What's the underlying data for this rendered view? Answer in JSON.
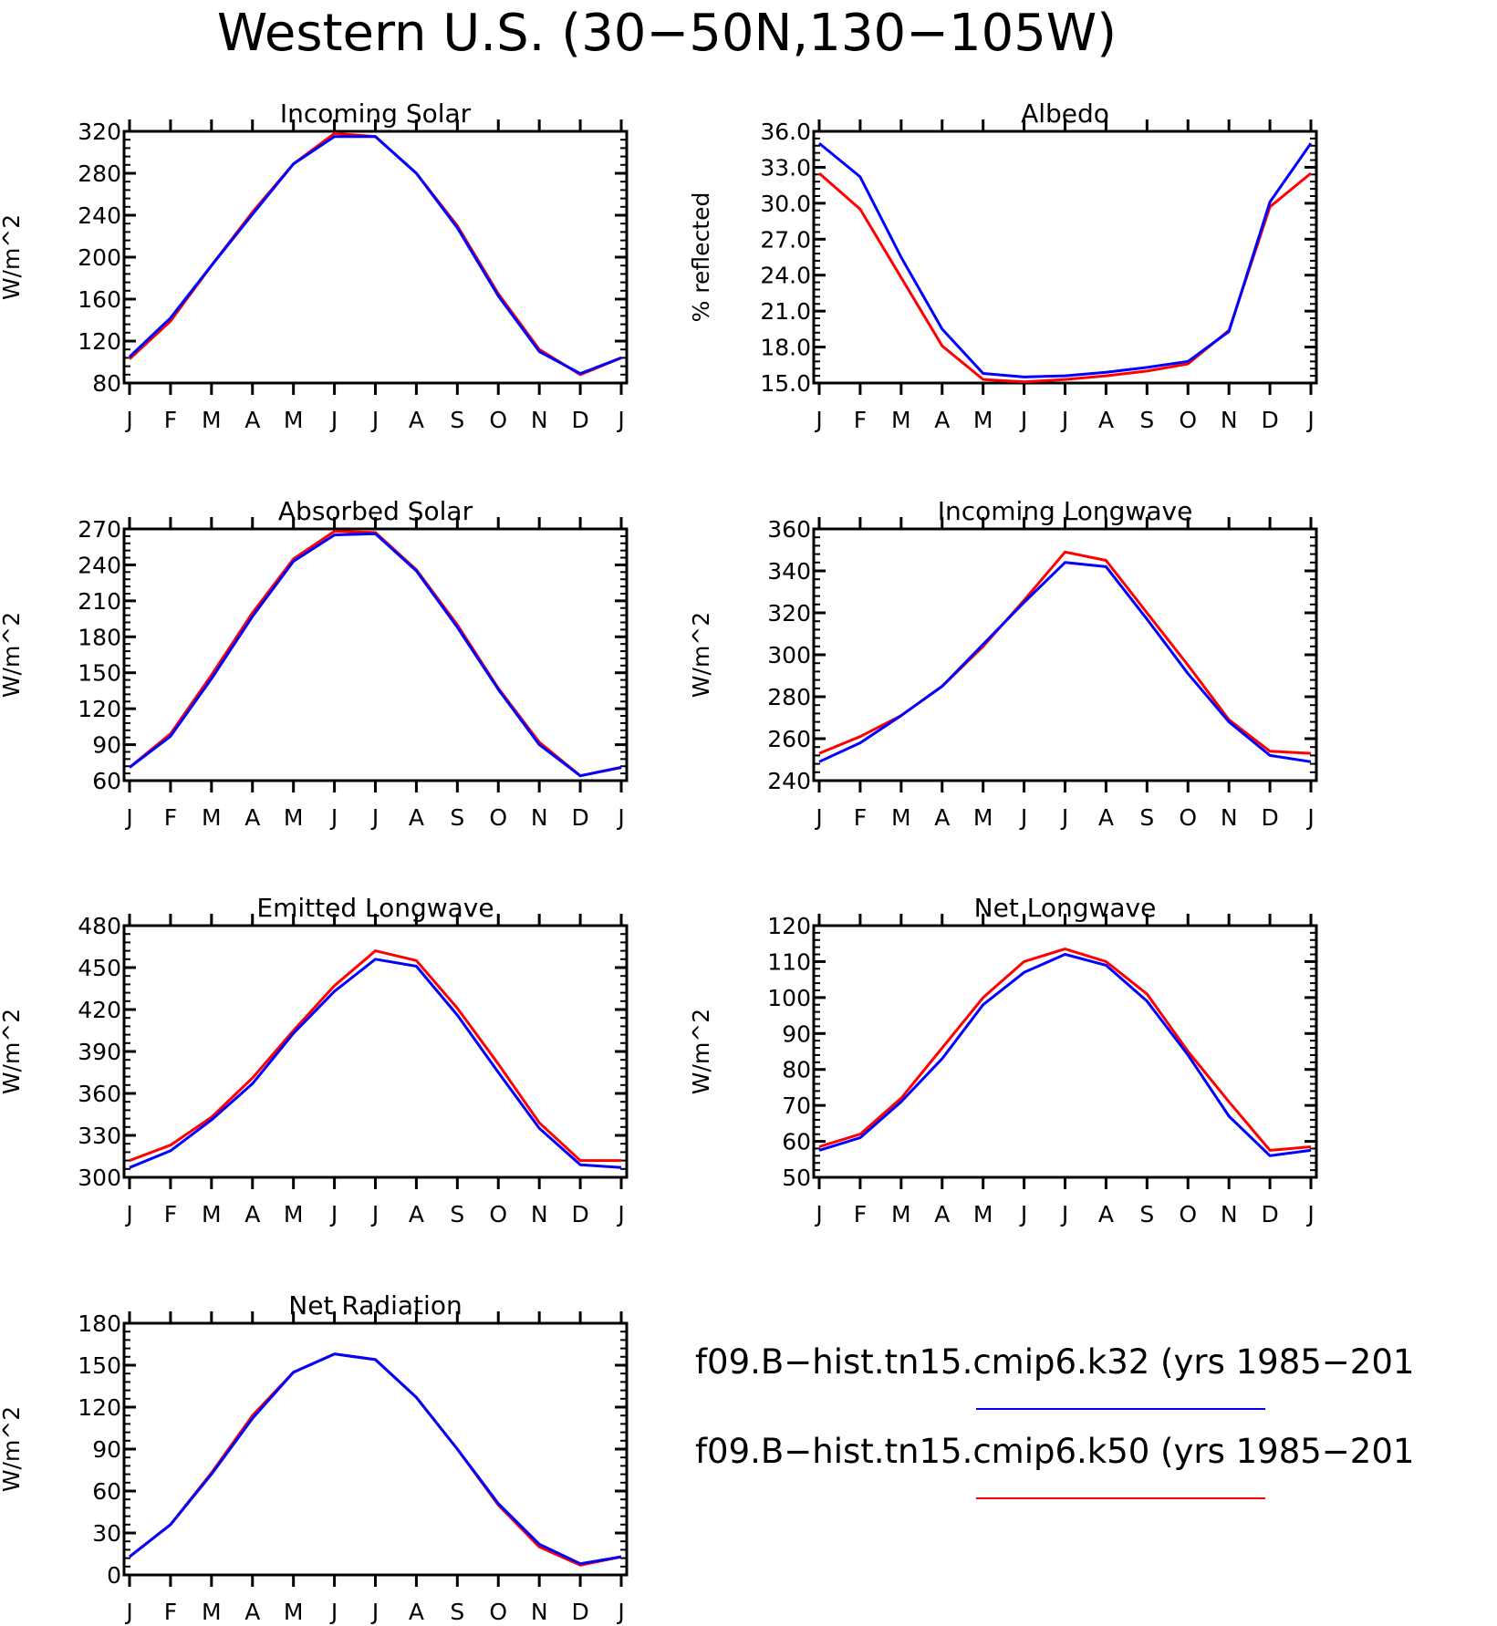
{
  "title": "Western U.S. (30−50N,130−105W)",
  "months": [
    "J",
    "F",
    "M",
    "A",
    "M",
    "J",
    "J",
    "A",
    "S",
    "O",
    "N",
    "D",
    "J"
  ],
  "colors": {
    "k32": "#0000ff",
    "k50": "#ff0000",
    "axis": "#000000"
  },
  "legend": [
    {
      "label": "f09.B−hist.tn15.cmip6.k32 (yrs 1985−201",
      "color": "#0000ff"
    },
    {
      "label": "f09.B−hist.tn15.cmip6.k50 (yrs 1985−201",
      "color": "#ff0000"
    }
  ],
  "chart_data": [
    {
      "type": "line",
      "title": "Incoming Solar",
      "ylabel": "W/m^2",
      "ylim": [
        80,
        320
      ],
      "yticks": [
        "80",
        "120",
        "160",
        "200",
        "240",
        "280",
        "320"
      ],
      "series": [
        {
          "key": "k32",
          "values": [
            105,
            142,
            192,
            241,
            289,
            315,
            315,
            280,
            228,
            163,
            110,
            89,
            104
          ]
        },
        {
          "key": "k50",
          "values": [
            103,
            139,
            192,
            243,
            289,
            318,
            315,
            280,
            230,
            165,
            112,
            88,
            104
          ]
        }
      ]
    },
    {
      "type": "line",
      "title": "Albedo",
      "ylabel": "% reflected",
      "ylim": [
        15,
        36
      ],
      "yticks": [
        "15.0",
        "18.0",
        "21.0",
        "24.0",
        "27.0",
        "30.0",
        "33.0",
        "36.0"
      ],
      "series": [
        {
          "key": "k32",
          "values": [
            35.0,
            32.2,
            25.5,
            19.5,
            15.8,
            15.5,
            15.6,
            15.9,
            16.3,
            16.8,
            19.3,
            30.1,
            35.0
          ]
        },
        {
          "key": "k50",
          "values": [
            32.5,
            29.5,
            23.8,
            18.1,
            15.3,
            15.1,
            15.3,
            15.6,
            16.0,
            16.6,
            19.4,
            29.7,
            32.5
          ]
        }
      ]
    },
    {
      "type": "line",
      "title": "Absorbed Solar",
      "ylabel": "W/m^2",
      "ylim": [
        60,
        270
      ],
      "yticks": [
        "60",
        "90",
        "120",
        "150",
        "180",
        "210",
        "240",
        "270"
      ],
      "series": [
        {
          "key": "k32",
          "values": [
            71,
            97,
            145,
            197,
            243,
            265,
            266,
            235,
            188,
            136,
            90,
            64,
            71
          ]
        },
        {
          "key": "k50",
          "values": [
            71,
            99,
            148,
            200,
            245,
            268,
            267,
            236,
            190,
            137,
            92,
            64,
            71
          ]
        }
      ]
    },
    {
      "type": "line",
      "title": "Incoming Longwave",
      "ylabel": "W/m^2",
      "ylim": [
        240,
        360
      ],
      "yticks": [
        "240",
        "260",
        "280",
        "300",
        "320",
        "340",
        "360"
      ],
      "series": [
        {
          "key": "k32",
          "values": [
            249,
            258,
            271,
            285,
            305,
            325,
            344,
            342,
            317,
            291,
            268,
            252,
            249
          ]
        },
        {
          "key": "k50",
          "values": [
            253,
            261,
            271,
            285,
            304,
            326,
            349,
            345,
            320,
            295,
            269,
            254,
            253
          ]
        }
      ]
    },
    {
      "type": "line",
      "title": "Emitted Longwave",
      "ylabel": "W/m^2",
      "ylim": [
        300,
        480
      ],
      "yticks": [
        "300",
        "330",
        "360",
        "390",
        "420",
        "450",
        "480"
      ],
      "series": [
        {
          "key": "k32",
          "values": [
            307,
            319,
            341,
            367,
            403,
            433,
            456,
            451,
            416,
            375,
            335,
            309,
            307
          ]
        },
        {
          "key": "k50",
          "values": [
            312,
            323,
            343,
            371,
            405,
            437,
            462,
            455,
            421,
            381,
            339,
            312,
            312
          ]
        }
      ]
    },
    {
      "type": "line",
      "title": "Net Longwave",
      "ylabel": "W/m^2",
      "ylim": [
        50,
        120
      ],
      "yticks": [
        "50",
        "60",
        "70",
        "80",
        "90",
        "100",
        "110",
        "120"
      ],
      "series": [
        {
          "key": "k32",
          "values": [
            57.5,
            61,
            71,
            83,
            98,
            107,
            112,
            109,
            99,
            84,
            67,
            56,
            57.5
          ]
        },
        {
          "key": "k50",
          "values": [
            58.5,
            62,
            72,
            86,
            100,
            110,
            113.5,
            110,
            101,
            85,
            71,
            57.5,
            58.5
          ]
        }
      ]
    },
    {
      "type": "line",
      "title": "Net Radiation",
      "ylabel": "W/m^2",
      "ylim": [
        0,
        180
      ],
      "yticks": [
        "0",
        "30",
        "60",
        "90",
        "120",
        "150",
        "180"
      ],
      "series": [
        {
          "key": "k32",
          "values": [
            13,
            36,
            72,
            112,
            145,
            158,
            154,
            127,
            90,
            51,
            22,
            8,
            13
          ]
        },
        {
          "key": "k50",
          "values": [
            13,
            36,
            73,
            114,
            145,
            158,
            154,
            127,
            90,
            50,
            20,
            7,
            13
          ]
        }
      ]
    }
  ]
}
